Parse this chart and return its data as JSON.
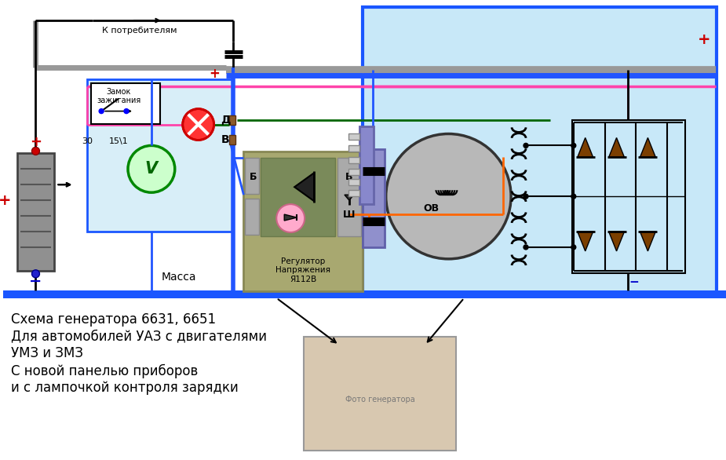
{
  "bg_color": "#ffffff",
  "gen_panel_bg": "#c8e8f8",
  "gen_panel_border": "#1a56ff",
  "inst_panel_bg": "#d8eef8",
  "inst_panel_border": "#1a56ff",
  "caption_lines": [
    "Схема генератора 6631, 6651",
    "Для автомобилей УАЗ с двигателями",
    "УМЗ и ЗМЗ",
    "С новой панелью приборов",
    "и с лампочкой контроля зарядки"
  ],
  "label_k_potrebitelyam": "К потребителям",
  "label_zamok": "Замок\nзажигания",
  "label_massa": "Масса",
  "label_regulator": "Регулятор\nНапряжения\nЯ112В",
  "label_OV": "ОВ",
  "label_B_left": "Б",
  "label_V_right": "В",
  "label_Sh": "Ш",
  "label_D": "Д",
  "label_V_conn": "В",
  "label_30": "30",
  "label_151": "15\\1",
  "plus_color": "#cc0000",
  "minus_color": "#0000cc",
  "wire_blue": "#2255ff",
  "wire_red": "#cc0000",
  "wire_green": "#006600",
  "wire_pink": "#ff44aa",
  "wire_orange": "#ff6600",
  "wire_dark_red": "#880000",
  "wire_black": "#111111",
  "wire_gray": "#999999",
  "border_blue": "#1a56ff",
  "ground_bar_color": "#1a56ff",
  "batt_color": "#888888",
  "reg_bg": "#9a9a6a",
  "reg_inner_bg": "#7a8a5a",
  "connector_color": "#8888cc",
  "rotor_color": "#b8b8b8"
}
